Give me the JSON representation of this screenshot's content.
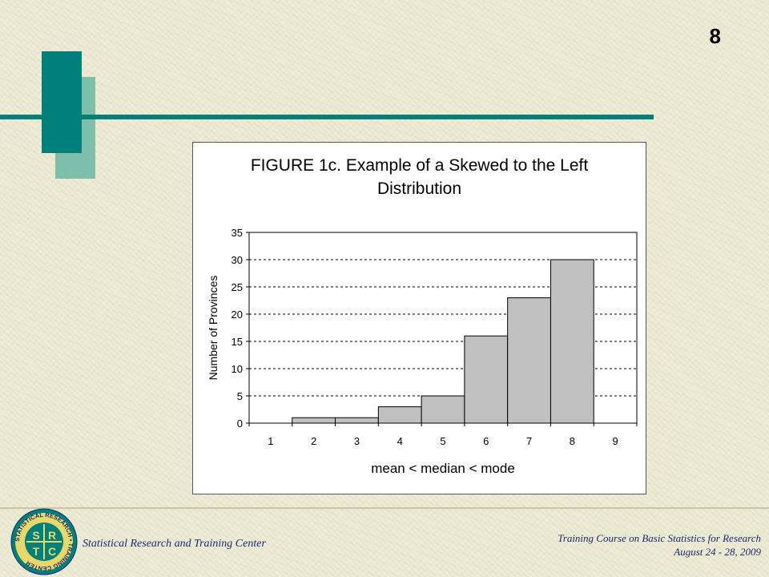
{
  "slide": {
    "number": "8"
  },
  "chart_data": {
    "type": "bar",
    "title_lines": [
      "FIGURE 1c. Example of a Skewed to the Left",
      "Distribution"
    ],
    "xlabel": "mean < median < mode",
    "ylabel": "Number of Provinces",
    "categories": [
      "1",
      "2",
      "3",
      "4",
      "5",
      "6",
      "7",
      "8",
      "9"
    ],
    "values": [
      0,
      1,
      1,
      3,
      5,
      16,
      23,
      30,
      0
    ],
    "ylim": [
      0,
      35
    ],
    "yticks": [
      0,
      5,
      10,
      15,
      20,
      25,
      30,
      35
    ],
    "grid": "horizontal-dashed",
    "legend": "none",
    "bar_color": "#c0c0c0"
  },
  "footer": {
    "org_name": "Statistical Research and Training Center",
    "course": "Training Course on Basic Statistics for Research",
    "dates": "August  24 - 28, 2009"
  },
  "logo": {
    "ring_text": "STATISTICAL RESEARCH • TRAINING CENTER",
    "letters": [
      "S",
      "R",
      "T",
      "C"
    ]
  }
}
